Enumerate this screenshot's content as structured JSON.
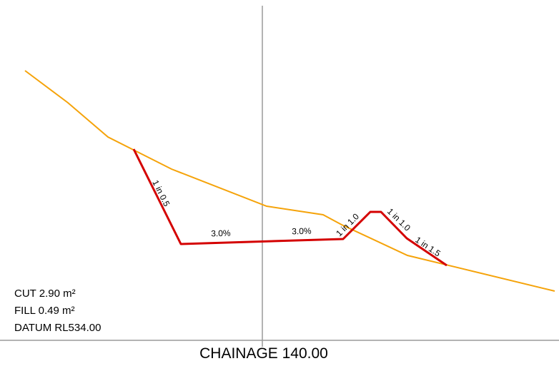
{
  "colors": {
    "background": "#ffffff",
    "existing_ground": "#f5a30a",
    "design_profile": "#d40000",
    "centreline": "#9a9a9a",
    "datum_line": "#9a9a9a",
    "text": "#000000"
  },
  "slope_labels": {
    "cut_batter_left": "1 in 0.5",
    "crossfall_left": "3.0%",
    "crossfall_right": "3.0%",
    "bund_inner": "1 in 1.0",
    "bund_outer": "1 in 1.0",
    "fill_batter_right": "1 in 1.5"
  },
  "quantities": {
    "cut": "CUT 2.90 m²",
    "fill": "FILL 0.49 m²",
    "datum": "DATUM RL534.00"
  },
  "chainage": "CHAINAGE 140.00"
}
